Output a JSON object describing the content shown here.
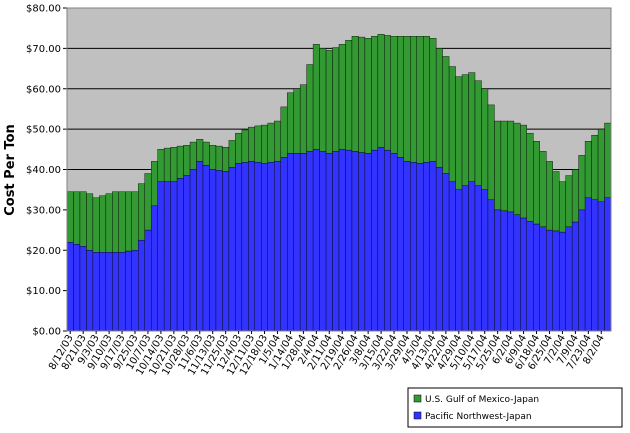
{
  "chart_data": {
    "type": "stacked_bar",
    "y_label": "Cost Per Ton",
    "categories": [
      "8/12/03",
      null,
      "8/21/03",
      null,
      "9/3/03",
      null,
      "9/10/03",
      null,
      "9/17/03",
      null,
      "9/25/03",
      null,
      "10/7/03",
      null,
      "10/14/03",
      null,
      "10/21/03",
      null,
      "10/28/03",
      null,
      "11/6/03",
      null,
      "11/13/03",
      null,
      "11/25/03",
      null,
      "12/4/03",
      null,
      "12/11/03",
      null,
      "12/18/03",
      null,
      "1/5/04",
      null,
      "1/14/04",
      null,
      "1/28/04",
      null,
      "2/4/04",
      null,
      "2/11/04",
      null,
      "2/19/04",
      null,
      "2/26/04",
      null,
      "3/8/04",
      null,
      "3/15/04",
      null,
      "3/22/04",
      null,
      "3/29/04",
      null,
      "4/5/04",
      null,
      "4/13/04",
      null,
      "4/22/04",
      null,
      "4/29/04",
      null,
      "5/10/04",
      null,
      "5/17/04",
      null,
      "5/25/04",
      null,
      "6/2/04",
      null,
      "6/9/04",
      null,
      "6/18/04",
      null,
      "6/25/04",
      null,
      "7/2/04",
      null,
      "7/9/04",
      null,
      "7/23/04",
      null,
      "8/2/04",
      null
    ],
    "series": [
      {
        "name": "Pacific Northwest-Japan",
        "color": "#3333ff",
        "values": [
          22,
          21.5,
          21,
          20,
          19.5,
          19.5,
          19.5,
          19.5,
          19.5,
          19.8,
          20,
          22.5,
          25,
          31,
          37,
          37,
          37,
          37.8,
          38.5,
          40,
          42,
          41,
          40,
          39.8,
          39.5,
          40.5,
          41.5,
          41.8,
          42,
          41.8,
          41.5,
          41.8,
          42,
          43,
          44,
          44,
          44,
          44.5,
          45,
          44.5,
          44,
          44.5,
          45,
          44.8,
          44.5,
          44.2,
          44,
          44.8,
          45.5,
          44.8,
          44,
          43,
          42,
          41.8,
          41.5,
          41.8,
          42,
          40.5,
          39,
          37,
          35,
          36,
          37,
          36,
          35,
          32.5,
          30,
          29.8,
          29.5,
          28.8,
          28,
          27.2,
          26.5,
          25.8,
          25,
          24.8,
          24.5,
          25.8,
          27,
          30,
          33,
          32.5,
          32,
          33
        ]
      },
      {
        "name": "U.S. Gulf of Mexico-Japan",
        "color": "#339933",
        "values": [
          12.5,
          13,
          13.5,
          14,
          13.5,
          14,
          14.5,
          15,
          15,
          14.7,
          14.5,
          14,
          14,
          11,
          8,
          8.3,
          8.5,
          8,
          7.5,
          6.8,
          5.5,
          5.8,
          6,
          6,
          6,
          6.7,
          7.5,
          8,
          8.5,
          9,
          9.5,
          9.7,
          10,
          12.5,
          15,
          16,
          17,
          21.5,
          26,
          25.5,
          25.5,
          25.7,
          26,
          27.2,
          28.5,
          28.6,
          28.5,
          28.2,
          28,
          28.4,
          29,
          30,
          31,
          31.2,
          31.5,
          31.2,
          30.5,
          29.5,
          29,
          28.5,
          28,
          27.5,
          27,
          26,
          25,
          23.5,
          22,
          22.2,
          22.5,
          22.7,
          23,
          21.8,
          20.5,
          18.7,
          17,
          14.7,
          12.5,
          12.7,
          13,
          13.5,
          14,
          16,
          18,
          18.5
        ]
      }
    ],
    "ylim": [
      0,
      80
    ],
    "yticks": [
      {
        "value": 0,
        "label": "$0.00"
      },
      {
        "value": 10,
        "label": "$10.00"
      },
      {
        "value": 20,
        "label": "$20.00"
      },
      {
        "value": 30,
        "label": "$30.00"
      },
      {
        "value": 40,
        "label": "$40.00"
      },
      {
        "value": 50,
        "label": "$50.00"
      },
      {
        "value": 60,
        "label": "$60.00"
      },
      {
        "value": 70,
        "label": "$70.00"
      },
      {
        "value": 80,
        "label": "$80.00"
      }
    ],
    "grid": true,
    "legend": "bottom-right",
    "plot_background": "#c0c0c0"
  }
}
